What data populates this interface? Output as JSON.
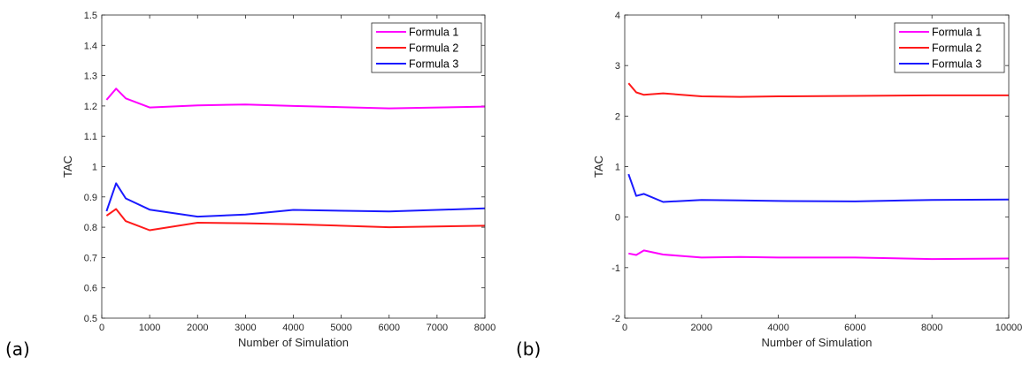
{
  "colors": {
    "formula1": "#ff00ff",
    "formula2": "#ff1a1a",
    "formula3": "#1a1aff"
  },
  "chart_data": [
    {
      "type": "line",
      "panel_label": "(a)",
      "xlabel": "Number of Simulation",
      "ylabel": "TAC",
      "xlim": [
        0,
        8000
      ],
      "ylim": [
        0.5,
        1.5
      ],
      "xticks": [
        0,
        1000,
        2000,
        3000,
        4000,
        5000,
        6000,
        7000,
        8000
      ],
      "yticks": [
        0.5,
        0.6,
        0.7,
        0.8,
        0.9,
        1,
        1.1,
        1.2,
        1.3,
        1.4,
        1.5
      ],
      "xtick_labels": [
        "0",
        "1000",
        "2000",
        "3000",
        "4000",
        "5000",
        "6000",
        "7000",
        "8000"
      ],
      "ytick_labels": [
        "0.5",
        "0.6",
        "0.7",
        "0.8",
        "0.9",
        "1",
        "1.1",
        "1.2",
        "1.3",
        "1.4",
        "1.5"
      ],
      "legend_position": "top-right",
      "grid": false,
      "x": [
        100,
        300,
        500,
        1000,
        2000,
        3000,
        4000,
        6000,
        8000
      ],
      "series": [
        {
          "name": "Formula 1",
          "color": "#ff00ff",
          "values": [
            1.22,
            1.257,
            1.225,
            1.195,
            1.202,
            1.205,
            1.2,
            1.192,
            1.198
          ]
        },
        {
          "name": "Formula 2",
          "color": "#ff1a1a",
          "values": [
            0.838,
            0.86,
            0.82,
            0.79,
            0.815,
            0.813,
            0.81,
            0.8,
            0.805
          ]
        },
        {
          "name": "Formula 3",
          "color": "#1a1aff",
          "values": [
            0.853,
            0.945,
            0.895,
            0.858,
            0.835,
            0.842,
            0.857,
            0.852,
            0.862
          ]
        }
      ]
    },
    {
      "type": "line",
      "panel_label": "(b)",
      "xlabel": "Number of Simulation",
      "ylabel": "TAC",
      "xlim": [
        0,
        10000
      ],
      "ylim": [
        -2,
        4
      ],
      "xticks": [
        0,
        2000,
        4000,
        6000,
        8000,
        10000
      ],
      "yticks": [
        -2,
        -1,
        0,
        1,
        2,
        3,
        4
      ],
      "xtick_labels": [
        "0",
        "2000",
        "4000",
        "6000",
        "8000",
        "10000"
      ],
      "ytick_labels": [
        "-2",
        "-1",
        "0",
        "1",
        "2",
        "3",
        "4"
      ],
      "legend_position": "top-right",
      "grid": false,
      "x": [
        100,
        300,
        500,
        1000,
        2000,
        3000,
        4000,
        6000,
        8000,
        10000
      ],
      "series": [
        {
          "name": "Formula 1",
          "color": "#ff00ff",
          "values": [
            -0.72,
            -0.75,
            -0.66,
            -0.74,
            -0.8,
            -0.79,
            -0.8,
            -0.8,
            -0.83,
            -0.82
          ]
        },
        {
          "name": "Formula 2",
          "color": "#ff1a1a",
          "values": [
            2.65,
            2.47,
            2.42,
            2.45,
            2.39,
            2.38,
            2.39,
            2.4,
            2.41,
            2.41
          ]
        },
        {
          "name": "Formula 3",
          "color": "#1a1aff",
          "values": [
            0.85,
            0.42,
            0.46,
            0.3,
            0.34,
            0.33,
            0.32,
            0.31,
            0.34,
            0.35
          ]
        }
      ]
    }
  ]
}
